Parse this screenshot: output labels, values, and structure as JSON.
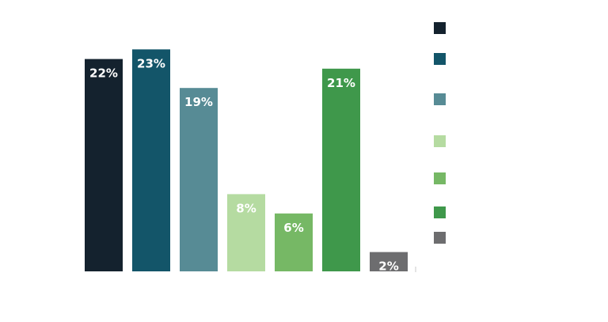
{
  "chart_data": {
    "type": "bar",
    "categories": [
      "",
      "",
      "",
      "",
      "",
      "",
      ""
    ],
    "values": [
      22,
      23,
      19,
      8,
      6,
      21,
      2
    ],
    "value_labels": [
      "22%",
      "23%",
      "19%",
      "8%",
      "6%",
      "21%",
      "2%"
    ],
    "colors": [
      "#14222e",
      "#135569",
      "#578b95",
      "#b5dba1",
      "#76b865",
      "#3f984b",
      "#6d6d6f"
    ],
    "unit": "%",
    "ylim": [
      0,
      25
    ],
    "grid": false,
    "legend_position": "right",
    "legend_labels": [
      "",
      "",
      "",
      "",
      "",
      "",
      ""
    ]
  }
}
